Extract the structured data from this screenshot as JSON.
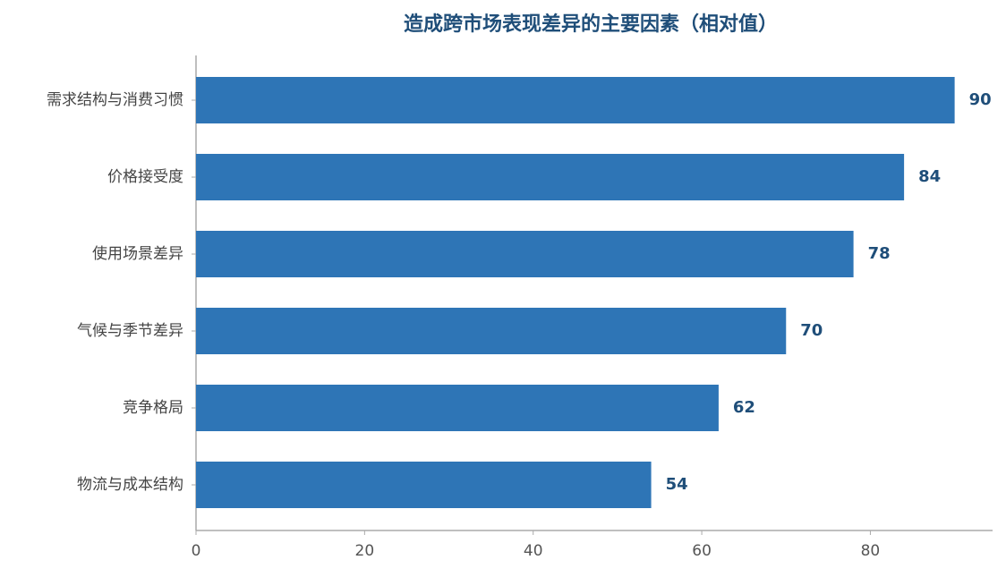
{
  "chart_data": {
    "type": "bar",
    "orientation": "horizontal",
    "title": "造成跨市场表现差异的主要因素（相对值）",
    "categories": [
      "需求结构与消费习惯",
      "价格接受度",
      "使用场景差异",
      "气候与季节差异",
      "竞争格局",
      "物流与成本结构"
    ],
    "values": [
      90,
      84,
      78,
      70,
      62,
      54
    ],
    "color": "#2e75b6",
    "xlim": [
      0,
      94.5
    ],
    "xticks": [
      0,
      20,
      40,
      60,
      80
    ],
    "grid": false
  }
}
